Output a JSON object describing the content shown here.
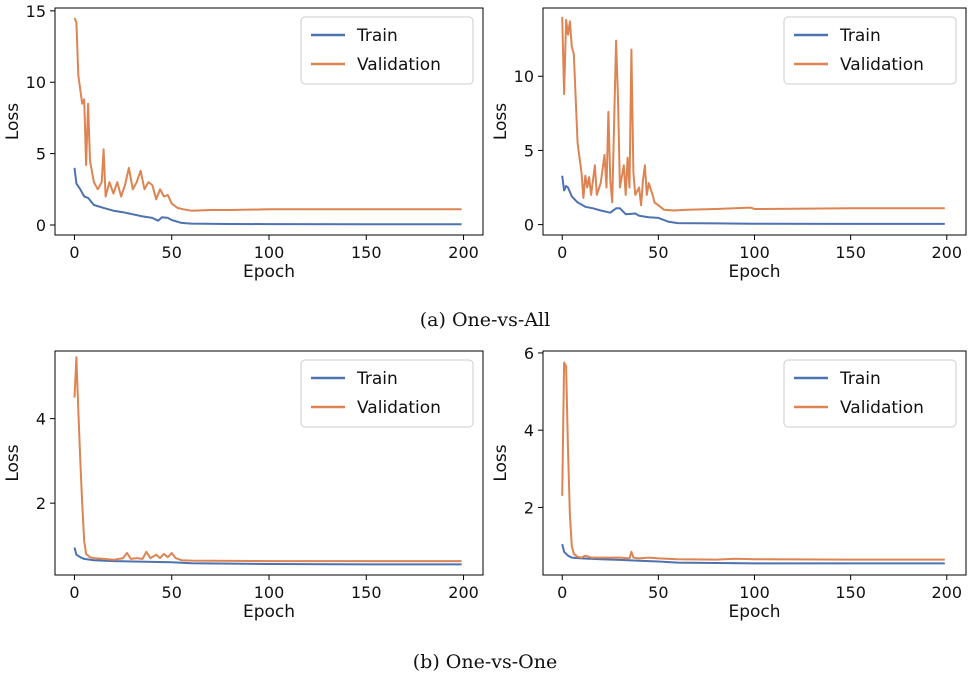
{
  "captions": {
    "a": "(a) One-vs-All",
    "b": "(b) One-vs-One"
  },
  "colors": {
    "train": "#4c72b0",
    "validation": "#dd8452"
  },
  "chart_data": [
    {
      "type": "line",
      "xlabel": "Epoch",
      "ylabel": "Loss",
      "xlim": [
        -10,
        210
      ],
      "ylim": [
        -0.7,
        15.2
      ],
      "xticks": [
        0,
        50,
        100,
        150,
        200
      ],
      "yticks": [
        0,
        5,
        10,
        15
      ],
      "legend": "top-right",
      "grid": false,
      "series": [
        {
          "name": "Train",
          "points": [
            [
              0,
              4.0
            ],
            [
              1,
              2.9
            ],
            [
              3,
              2.5
            ],
            [
              5,
              2.0
            ],
            [
              7,
              1.9
            ],
            [
              10,
              1.4
            ],
            [
              15,
              1.2
            ],
            [
              20,
              1.0
            ],
            [
              25,
              0.9
            ],
            [
              30,
              0.75
            ],
            [
              35,
              0.6
            ],
            [
              40,
              0.5
            ],
            [
              43,
              0.3
            ],
            [
              45,
              0.55
            ],
            [
              48,
              0.5
            ],
            [
              50,
              0.35
            ],
            [
              55,
              0.15
            ],
            [
              60,
              0.1
            ],
            [
              80,
              0.07
            ],
            [
              100,
              0.06
            ],
            [
              150,
              0.05
            ],
            [
              199,
              0.05
            ]
          ]
        },
        {
          "name": "Validation",
          "points": [
            [
              0,
              14.5
            ],
            [
              1,
              14.2
            ],
            [
              2,
              10.5
            ],
            [
              4,
              8.5
            ],
            [
              5,
              8.8
            ],
            [
              6,
              4.2
            ],
            [
              7,
              8.5
            ],
            [
              8,
              4.5
            ],
            [
              10,
              3.0
            ],
            [
              12,
              2.5
            ],
            [
              14,
              3.0
            ],
            [
              15,
              5.3
            ],
            [
              16,
              2.0
            ],
            [
              18,
              3.0
            ],
            [
              20,
              2.2
            ],
            [
              22,
              3.0
            ],
            [
              24,
              2.0
            ],
            [
              26,
              2.8
            ],
            [
              28,
              4.0
            ],
            [
              30,
              2.5
            ],
            [
              32,
              3.0
            ],
            [
              34,
              3.8
            ],
            [
              36,
              2.5
            ],
            [
              38,
              3.0
            ],
            [
              40,
              2.8
            ],
            [
              42,
              1.8
            ],
            [
              44,
              2.5
            ],
            [
              46,
              2.0
            ],
            [
              48,
              2.1
            ],
            [
              50,
              1.5
            ],
            [
              53,
              1.2
            ],
            [
              56,
              1.1
            ],
            [
              60,
              1.0
            ],
            [
              70,
              1.05
            ],
            [
              80,
              1.05
            ],
            [
              100,
              1.1
            ],
            [
              150,
              1.1
            ],
            [
              199,
              1.1
            ]
          ]
        }
      ]
    },
    {
      "type": "line",
      "xlabel": "Epoch",
      "ylabel": "Loss",
      "xlim": [
        -10,
        210
      ],
      "ylim": [
        -0.7,
        14.6
      ],
      "xticks": [
        0,
        50,
        100,
        150,
        200
      ],
      "yticks": [
        0,
        5,
        10
      ],
      "legend": "top-right",
      "grid": false,
      "series": [
        {
          "name": "Train",
          "points": [
            [
              0,
              3.3
            ],
            [
              1,
              2.3
            ],
            [
              2,
              2.6
            ],
            [
              3,
              2.5
            ],
            [
              5,
              1.9
            ],
            [
              8,
              1.5
            ],
            [
              12,
              1.2
            ],
            [
              16,
              1.1
            ],
            [
              20,
              0.95
            ],
            [
              25,
              0.8
            ],
            [
              28,
              1.1
            ],
            [
              30,
              1.1
            ],
            [
              33,
              0.7
            ],
            [
              38,
              0.75
            ],
            [
              40,
              0.6
            ],
            [
              45,
              0.5
            ],
            [
              50,
              0.45
            ],
            [
              55,
              0.2
            ],
            [
              60,
              0.1
            ],
            [
              80,
              0.08
            ],
            [
              100,
              0.06
            ],
            [
              150,
              0.05
            ],
            [
              199,
              0.05
            ]
          ]
        },
        {
          "name": "Validation",
          "points": [
            [
              0,
              14.0
            ],
            [
              1,
              8.8
            ],
            [
              2,
              13.8
            ],
            [
              3,
              12.8
            ],
            [
              4,
              13.7
            ],
            [
              5,
              12.0
            ],
            [
              6,
              11.5
            ],
            [
              8,
              5.5
            ],
            [
              10,
              3.5
            ],
            [
              11,
              1.8
            ],
            [
              12,
              3.3
            ],
            [
              13,
              2.5
            ],
            [
              14,
              3.2
            ],
            [
              15,
              2.0
            ],
            [
              17,
              4.0
            ],
            [
              18,
              2.0
            ],
            [
              20,
              2.8
            ],
            [
              22,
              4.7
            ],
            [
              23,
              2.5
            ],
            [
              24,
              7.6
            ],
            [
              25,
              3.0
            ],
            [
              26,
              1.5
            ],
            [
              28,
              12.4
            ],
            [
              29,
              8.5
            ],
            [
              30,
              2.5
            ],
            [
              32,
              4.0
            ],
            [
              33,
              2.0
            ],
            [
              34,
              4.5
            ],
            [
              35,
              2.5
            ],
            [
              36,
              11.8
            ],
            [
              37,
              3.5
            ],
            [
              38,
              2.0
            ],
            [
              40,
              2.5
            ],
            [
              41,
              1.3
            ],
            [
              42,
              3.0
            ],
            [
              43,
              4.0
            ],
            [
              44,
              2.0
            ],
            [
              45,
              2.8
            ],
            [
              47,
              2.0
            ],
            [
              48,
              1.5
            ],
            [
              50,
              1.3
            ],
            [
              53,
              1.0
            ],
            [
              58,
              0.95
            ],
            [
              65,
              1.0
            ],
            [
              80,
              1.05
            ],
            [
              98,
              1.15
            ],
            [
              100,
              1.05
            ],
            [
              150,
              1.1
            ],
            [
              199,
              1.1
            ]
          ]
        }
      ]
    },
    {
      "type": "line",
      "xlabel": "Epoch",
      "ylabel": "Loss",
      "xlim": [
        -10,
        210
      ],
      "ylim": [
        0.3,
        5.6
      ],
      "xticks": [
        0,
        50,
        100,
        150,
        200
      ],
      "yticks": [
        2,
        4
      ],
      "legend": "top-right",
      "grid": false,
      "series": [
        {
          "name": "Train",
          "points": [
            [
              0,
              0.95
            ],
            [
              1,
              0.78
            ],
            [
              3,
              0.72
            ],
            [
              5,
              0.68
            ],
            [
              10,
              0.65
            ],
            [
              20,
              0.63
            ],
            [
              30,
              0.62
            ],
            [
              40,
              0.61
            ],
            [
              50,
              0.6
            ],
            [
              60,
              0.58
            ],
            [
              100,
              0.56
            ],
            [
              150,
              0.55
            ],
            [
              199,
              0.55
            ]
          ]
        },
        {
          "name": "Validation",
          "points": [
            [
              0,
              4.5
            ],
            [
              1,
              5.45
            ],
            [
              2,
              4.2
            ],
            [
              3,
              3.0
            ],
            [
              4,
              2.0
            ],
            [
              5,
              1.1
            ],
            [
              6,
              0.8
            ],
            [
              8,
              0.72
            ],
            [
              10,
              0.7
            ],
            [
              15,
              0.68
            ],
            [
              20,
              0.66
            ],
            [
              25,
              0.7
            ],
            [
              27,
              0.82
            ],
            [
              29,
              0.68
            ],
            [
              32,
              0.7
            ],
            [
              35,
              0.68
            ],
            [
              37,
              0.85
            ],
            [
              39,
              0.7
            ],
            [
              42,
              0.78
            ],
            [
              44,
              0.7
            ],
            [
              46,
              0.8
            ],
            [
              48,
              0.72
            ],
            [
              50,
              0.82
            ],
            [
              52,
              0.7
            ],
            [
              55,
              0.65
            ],
            [
              60,
              0.64
            ],
            [
              100,
              0.63
            ],
            [
              150,
              0.63
            ],
            [
              199,
              0.63
            ]
          ]
        }
      ]
    },
    {
      "type": "line",
      "xlabel": "Epoch",
      "ylabel": "Loss",
      "xlim": [
        -10,
        210
      ],
      "ylim": [
        0.25,
        6.05
      ],
      "xticks": [
        0,
        50,
        100,
        150,
        200
      ],
      "yticks": [
        2,
        4,
        6
      ],
      "legend": "top-right",
      "grid": false,
      "series": [
        {
          "name": "Train",
          "points": [
            [
              0,
              1.05
            ],
            [
              1,
              0.85
            ],
            [
              3,
              0.75
            ],
            [
              5,
              0.7
            ],
            [
              10,
              0.68
            ],
            [
              20,
              0.66
            ],
            [
              30,
              0.64
            ],
            [
              40,
              0.62
            ],
            [
              50,
              0.6
            ],
            [
              60,
              0.57
            ],
            [
              100,
              0.55
            ],
            [
              150,
              0.55
            ],
            [
              199,
              0.55
            ]
          ]
        },
        {
          "name": "Validation",
          "points": [
            [
              0,
              2.3
            ],
            [
              1,
              5.75
            ],
            [
              2,
              5.65
            ],
            [
              3,
              3.5
            ],
            [
              4,
              1.8
            ],
            [
              5,
              1.0
            ],
            [
              6,
              0.8
            ],
            [
              8,
              0.72
            ],
            [
              10,
              0.7
            ],
            [
              12,
              0.75
            ],
            [
              15,
              0.7
            ],
            [
              20,
              0.7
            ],
            [
              30,
              0.7
            ],
            [
              35,
              0.68
            ],
            [
              36,
              0.85
            ],
            [
              37,
              0.7
            ],
            [
              40,
              0.68
            ],
            [
              45,
              0.7
            ],
            [
              50,
              0.68
            ],
            [
              60,
              0.66
            ],
            [
              80,
              0.65
            ],
            [
              90,
              0.67
            ],
            [
              100,
              0.66
            ],
            [
              150,
              0.65
            ],
            [
              199,
              0.65
            ]
          ]
        }
      ]
    }
  ]
}
